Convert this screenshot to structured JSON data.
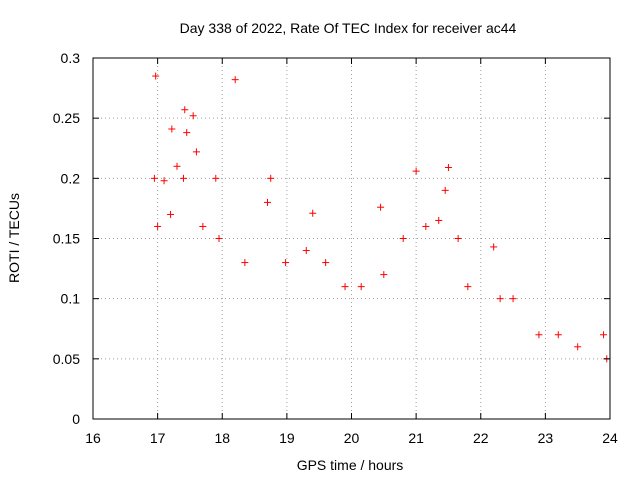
{
  "chart_data": {
    "type": "scatter",
    "title": "Day 338 of 2022, Rate Of TEC Index for receiver ac44",
    "xlabel": "GPS time / hours",
    "ylabel": "ROTI / TECUs",
    "xlim": [
      16,
      24
    ],
    "ylim": [
      0,
      0.3
    ],
    "xticks": [
      "16",
      "17",
      "18",
      "19",
      "20",
      "21",
      "22",
      "23",
      "24"
    ],
    "yticks": [
      "0",
      "0.05",
      "0.1",
      "0.15",
      "0.2",
      "0.25",
      "0.3"
    ],
    "grid": true,
    "legend": "none",
    "marker": "plus",
    "color": "#ff0000",
    "series": [
      {
        "name": "ROTI",
        "x": [
          16.97,
          17.42,
          18.2,
          17.22,
          17.45,
          17.55,
          17.6,
          17.3,
          17.4,
          17.1,
          16.95,
          17.9,
          18.75,
          21.0,
          21.5,
          21.45,
          20.45,
          19.4,
          22.2,
          17.0,
          17.2,
          17.7,
          17.95,
          18.35,
          18.7,
          18.98,
          19.3,
          19.6,
          19.9,
          20.15,
          20.5,
          20.8,
          21.15,
          21.35,
          21.65,
          21.8,
          22.3,
          22.5,
          22.9,
          23.2,
          23.5,
          23.9,
          23.95
        ],
        "y": [
          0.285,
          0.257,
          0.282,
          0.241,
          0.238,
          0.252,
          0.222,
          0.21,
          0.2,
          0.198,
          0.2,
          0.2,
          0.2,
          0.206,
          0.209,
          0.19,
          0.176,
          0.171,
          0.143,
          0.16,
          0.17,
          0.16,
          0.15,
          0.13,
          0.18,
          0.13,
          0.14,
          0.13,
          0.11,
          0.11,
          0.12,
          0.15,
          0.16,
          0.165,
          0.15,
          0.11,
          0.1,
          0.1,
          0.07,
          0.07,
          0.06,
          0.07,
          0.05
        ]
      }
    ]
  }
}
